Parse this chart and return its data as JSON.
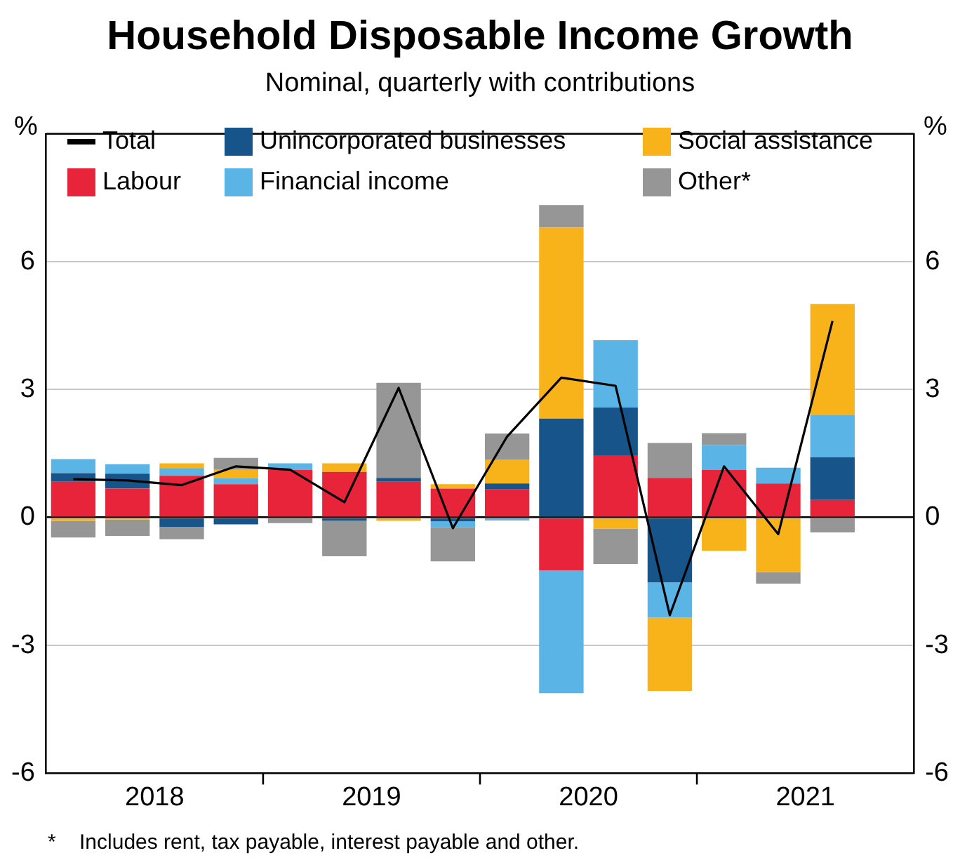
{
  "chart_data": {
    "type": "bar",
    "title": "Household Disposable Income Growth",
    "subtitle": "Nominal, quarterly with contributions",
    "ylabel": "%",
    "y2label": "%",
    "x": [
      2018.125,
      2018.375,
      2018.625,
      2018.875,
      2019.125,
      2019.375,
      2019.625,
      2019.875,
      2020.125,
      2020.375,
      2020.625,
      2020.875,
      2021.125,
      2021.375,
      2021.625
    ],
    "xlim": [
      2018,
      2022
    ],
    "xticks": [
      {
        "value": 2018.5,
        "label": "2018"
      },
      {
        "value": 2019,
        "label": null
      },
      {
        "value": 2019.5,
        "label": "2019"
      },
      {
        "value": 2020,
        "label": null
      },
      {
        "value": 2020.5,
        "label": "2020"
      },
      {
        "value": 2021,
        "label": null
      },
      {
        "value": 2021.5,
        "label": "2021"
      }
    ],
    "ylim": [
      -6,
      9
    ],
    "yticks": [
      -6,
      -3,
      0,
      3,
      6
    ],
    "y2lim": [
      -6,
      9
    ],
    "y2ticks": [
      -6,
      -3,
      0,
      3,
      6
    ],
    "stacked": true,
    "grid": "y",
    "legend": "top",
    "series": [
      {
        "name": "Total",
        "type": "line",
        "color": "#000000",
        "marker": "none",
        "line_style": "solid",
        "values": [
          0.9,
          0.87,
          0.76,
          1.2,
          1.12,
          0.36,
          3.04,
          -0.25,
          1.9,
          3.28,
          3.09,
          -2.29,
          1.2,
          -0.39,
          4.61
        ]
      },
      {
        "name": "Labour",
        "color": "#e8243b",
        "values": [
          0.84,
          0.68,
          0.98,
          0.78,
          1.12,
          1.07,
          0.84,
          0.68,
          0.66,
          -1.24,
          1.46,
          0.93,
          1.12,
          0.8,
          0.41
        ]
      },
      {
        "name": "Unincorporated businesses",
        "color": "#16548a",
        "values": [
          0.2,
          0.35,
          -0.22,
          -0.16,
          0,
          -0.08,
          0.09,
          -0.09,
          0.14,
          2.32,
          1.12,
          -1.52,
          0,
          0,
          1.0
        ]
      },
      {
        "name": "Financial income",
        "color": "#5ab4e5",
        "values": [
          0.33,
          0.22,
          0.18,
          0.14,
          0.15,
          0,
          0,
          -0.14,
          -0.07,
          -2.88,
          1.58,
          -0.83,
          0.58,
          0.37,
          0.99
        ]
      },
      {
        "name": "Social assistance",
        "color": "#f9b31a",
        "values": [
          -0.08,
          -0.05,
          0.11,
          0.2,
          0,
          0.2,
          -0.08,
          0.1,
          0.56,
          4.48,
          -0.26,
          -1.72,
          -0.78,
          -1.28,
          2.61
        ]
      },
      {
        "name": "Other*",
        "color": "#969696",
        "values": [
          -0.39,
          -0.38,
          -0.29,
          0.28,
          -0.13,
          -0.83,
          2.23,
          -0.8,
          0.61,
          0.53,
          -0.83,
          0.82,
          0.28,
          -0.27,
          -0.35
        ]
      }
    ],
    "annotations": [
      "*    Includes rent, tax payable, interest payable and other."
    ]
  }
}
